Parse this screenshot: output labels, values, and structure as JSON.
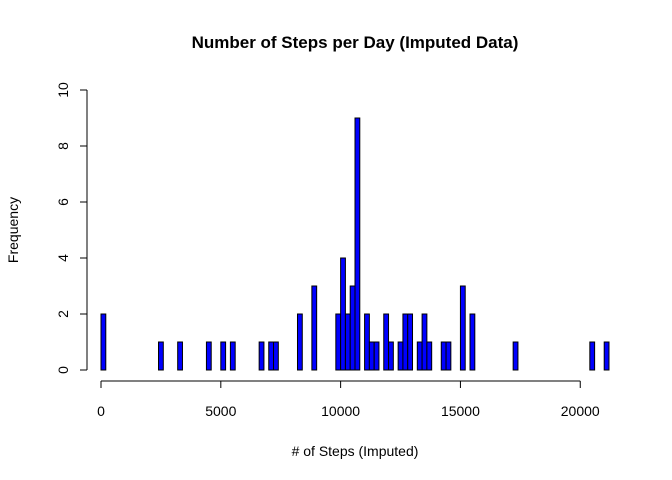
{
  "colors": {
    "bar_fill": "#0000ff",
    "bar_border": "#000000",
    "background": "#ffffff"
  },
  "chart_data": {
    "type": "bar",
    "title": "Number of Steps per Day (Imputed Data)",
    "xlabel": "# of Steps (Imputed)",
    "ylabel": "Frequency",
    "xlim": [
      0,
      21200
    ],
    "ylim": [
      0,
      10
    ],
    "xticks": [
      0,
      5000,
      10000,
      15000,
      20000
    ],
    "yticks": [
      0,
      2,
      4,
      6,
      8,
      10
    ],
    "bin_width": 200,
    "grid": false,
    "legend": "none",
    "bins": [
      {
        "start": 0,
        "count": 2
      },
      {
        "start": 2400,
        "count": 1
      },
      {
        "start": 3200,
        "count": 1
      },
      {
        "start": 4400,
        "count": 1
      },
      {
        "start": 5000,
        "count": 1
      },
      {
        "start": 5400,
        "count": 1
      },
      {
        "start": 6600,
        "count": 1
      },
      {
        "start": 7000,
        "count": 1
      },
      {
        "start": 7200,
        "count": 1
      },
      {
        "start": 8200,
        "count": 2
      },
      {
        "start": 8800,
        "count": 3
      },
      {
        "start": 9800,
        "count": 2
      },
      {
        "start": 10000,
        "count": 4
      },
      {
        "start": 10200,
        "count": 2
      },
      {
        "start": 10400,
        "count": 3
      },
      {
        "start": 10600,
        "count": 9
      },
      {
        "start": 11000,
        "count": 2
      },
      {
        "start": 11200,
        "count": 1
      },
      {
        "start": 11400,
        "count": 1
      },
      {
        "start": 11800,
        "count": 2
      },
      {
        "start": 12000,
        "count": 1
      },
      {
        "start": 12400,
        "count": 1
      },
      {
        "start": 12600,
        "count": 2
      },
      {
        "start": 12800,
        "count": 2
      },
      {
        "start": 13200,
        "count": 1
      },
      {
        "start": 13400,
        "count": 2
      },
      {
        "start": 13600,
        "count": 1
      },
      {
        "start": 14200,
        "count": 1
      },
      {
        "start": 14400,
        "count": 1
      },
      {
        "start": 15000,
        "count": 3
      },
      {
        "start": 15400,
        "count": 2
      },
      {
        "start": 17200,
        "count": 1
      },
      {
        "start": 20400,
        "count": 1
      },
      {
        "start": 21000,
        "count": 1
      }
    ]
  }
}
